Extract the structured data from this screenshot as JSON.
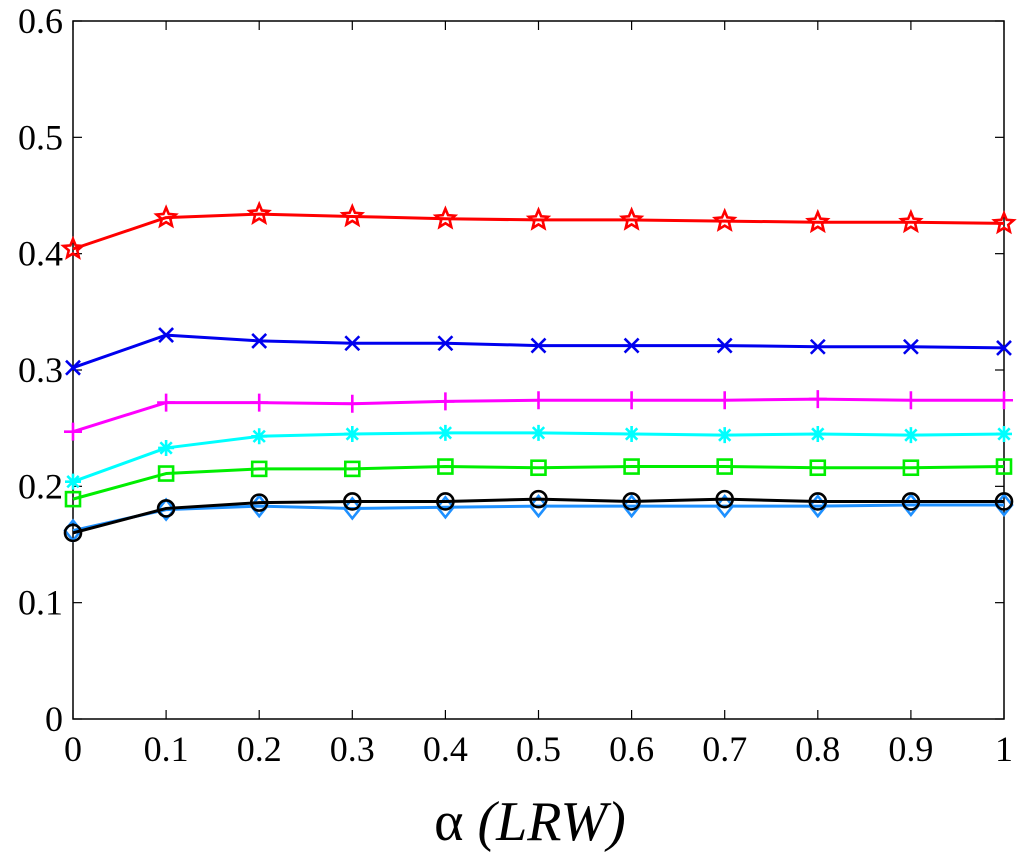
{
  "chart_data": {
    "type": "line",
    "title": "",
    "xlabel": "α (LRW)",
    "xlabel_symbol": "α",
    "xlabel_text": "(LRW)",
    "ylabel": "",
    "xlim": [
      0,
      1
    ],
    "ylim": [
      0,
      0.6
    ],
    "x": [
      0,
      0.1,
      0.2,
      0.3,
      0.4,
      0.5,
      0.6,
      0.7,
      0.8,
      0.9,
      1
    ],
    "xtick_labels": [
      "0",
      "0.1",
      "0.2",
      "0.3",
      "0.4",
      "0.5",
      "0.6",
      "0.7",
      "0.8",
      "0.9",
      "1"
    ],
    "yticks": [
      0,
      0.1,
      0.2,
      0.3,
      0.4,
      0.5,
      0.6
    ],
    "ytick_labels": [
      "0",
      "0.1",
      "0.2",
      "0.3",
      "0.4",
      "0.5",
      "0.6"
    ],
    "grid": false,
    "legend": false,
    "series": [
      {
        "name": "red",
        "color": "#ff0000",
        "marker": "star",
        "values": [
          0.404,
          0.431,
          0.434,
          0.432,
          0.43,
          0.429,
          0.429,
          0.428,
          0.427,
          0.427,
          0.426
        ]
      },
      {
        "name": "blue",
        "color": "#0000ee",
        "marker": "x",
        "values": [
          0.302,
          0.33,
          0.325,
          0.323,
          0.323,
          0.321,
          0.321,
          0.321,
          0.32,
          0.32,
          0.319
        ]
      },
      {
        "name": "magenta",
        "color": "#ff00ff",
        "marker": "plus",
        "values": [
          0.247,
          0.272,
          0.272,
          0.271,
          0.273,
          0.274,
          0.274,
          0.274,
          0.275,
          0.274,
          0.274
        ]
      },
      {
        "name": "cyan",
        "color": "#00ffff",
        "marker": "asterisk",
        "values": [
          0.204,
          0.233,
          0.243,
          0.245,
          0.246,
          0.246,
          0.245,
          0.244,
          0.245,
          0.244,
          0.245
        ]
      },
      {
        "name": "green",
        "color": "#00ee00",
        "marker": "square",
        "values": [
          0.189,
          0.211,
          0.215,
          0.215,
          0.217,
          0.216,
          0.217,
          0.217,
          0.216,
          0.216,
          0.217
        ]
      },
      {
        "name": "black",
        "color": "#000000",
        "marker": "circle",
        "values": [
          0.16,
          0.181,
          0.186,
          0.187,
          0.187,
          0.189,
          0.187,
          0.189,
          0.187,
          0.187,
          0.187
        ]
      },
      {
        "name": "lightblue",
        "color": "#1e90ff",
        "marker": "diamond",
        "values": [
          0.162,
          0.18,
          0.183,
          0.181,
          0.182,
          0.183,
          0.183,
          0.183,
          0.183,
          0.184,
          0.184
        ]
      }
    ]
  }
}
